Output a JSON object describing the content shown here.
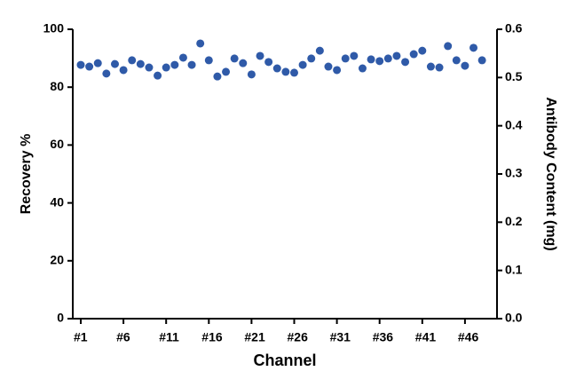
{
  "chart_data": {
    "type": "scatter",
    "x_label": "Channel",
    "y_label": "Recovery %",
    "y2_label": "Antibody Content (mg)",
    "categories": [
      "#1",
      null,
      null,
      null,
      null,
      "#6",
      null,
      null,
      null,
      null,
      "#11",
      null,
      null,
      null,
      null,
      "#16",
      null,
      null,
      null,
      null,
      "#21",
      null,
      null,
      null,
      null,
      "#26",
      null,
      null,
      null,
      null,
      "#31",
      null,
      null,
      null,
      null,
      "#36",
      null,
      null,
      null,
      null,
      "#41",
      null,
      null,
      null,
      null,
      "#46",
      null,
      null
    ],
    "series": [
      {
        "color": "#2f5aa8",
        "values": [
          87.7,
          87.1,
          88.3,
          84.7,
          88.0,
          85.9,
          89.3,
          88.0,
          86.8,
          84.0,
          86.8,
          87.7,
          90.2,
          87.7,
          95.1,
          89.3,
          83.7,
          85.3,
          89.9,
          88.3,
          84.4,
          90.8,
          88.7,
          86.5,
          85.3,
          85.0,
          87.7,
          89.9,
          92.6,
          87.1,
          85.9,
          89.9,
          90.8,
          86.5,
          89.6,
          89.0,
          89.9,
          90.8,
          88.7,
          91.4,
          92.6,
          87.1,
          86.8,
          94.2,
          89.3,
          87.4,
          93.6,
          89.3
        ]
      }
    ],
    "ylim": [
      0,
      100
    ],
    "yticks": [
      0,
      20,
      40,
      60,
      80,
      100
    ],
    "y2lim": [
      0,
      0.6
    ],
    "y2ticks": [
      {
        "value": 0,
        "label": "0.0"
      },
      0.1,
      0.2,
      0.3,
      0.4,
      0.5,
      0.6
    ]
  }
}
